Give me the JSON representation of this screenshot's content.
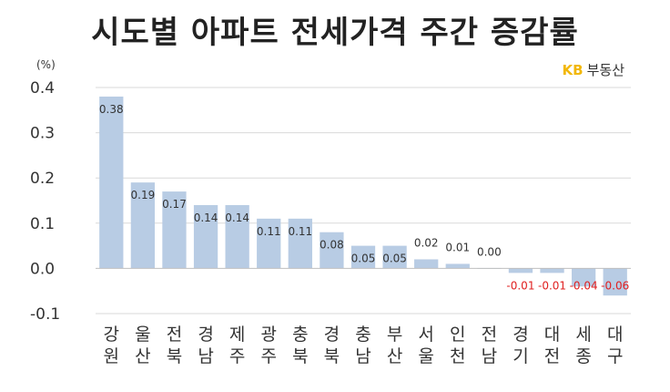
{
  "chart_data": {
    "type": "bar",
    "title": "시도별 아파트 전세가격 주간 증감률",
    "unit_label": "(%)",
    "source": "KB 부동산",
    "source_brand": "KB",
    "source_name": "부동산",
    "categories": [
      "강원",
      "울산",
      "전북",
      "경남",
      "제주",
      "광주",
      "충북",
      "경북",
      "충남",
      "부산",
      "서울",
      "인천",
      "전남",
      "경기",
      "대전",
      "세종",
      "대구"
    ],
    "category_lines": [
      [
        "강",
        "원"
      ],
      [
        "울",
        "산"
      ],
      [
        "전",
        "북"
      ],
      [
        "경",
        "남"
      ],
      [
        "제",
        "주"
      ],
      [
        "광",
        "주"
      ],
      [
        "충",
        "북"
      ],
      [
        "경",
        "북"
      ],
      [
        "충",
        "남"
      ],
      [
        "부",
        "산"
      ],
      [
        "서",
        "울"
      ],
      [
        "인",
        "천"
      ],
      [
        "전",
        "남"
      ],
      [
        "경",
        "기"
      ],
      [
        "대",
        "전"
      ],
      [
        "세",
        "종"
      ],
      [
        "대",
        "구"
      ]
    ],
    "values": [
      0.38,
      0.19,
      0.17,
      0.14,
      0.14,
      0.11,
      0.11,
      0.08,
      0.05,
      0.05,
      0.02,
      0.01,
      0.0,
      -0.01,
      -0.01,
      -0.04,
      -0.06
    ],
    "data_labels": [
      "0.38",
      "0.19",
      "0.17",
      "0.14",
      "0.14",
      "0.11",
      "0.11",
      "0.08",
      "0.05",
      "0.05",
      "0.02",
      "0.01",
      "0.00",
      "-0.01",
      "-0.01",
      "-0.04",
      "-0.06"
    ],
    "y_ticks": [
      "0.4",
      "0.3",
      "0.2",
      "0.1",
      "0.0",
      "-0.1"
    ],
    "y_tick_values": [
      0.4,
      0.3,
      0.2,
      0.1,
      0.0,
      -0.1
    ],
    "ylim": [
      -0.1,
      0.4
    ],
    "grid": true,
    "colors": {
      "bar": "#b8cce4",
      "grid": "#d9d9d9",
      "positive_label": "#333333",
      "negative_label": "#e02020",
      "brand": "#f2b705"
    }
  }
}
